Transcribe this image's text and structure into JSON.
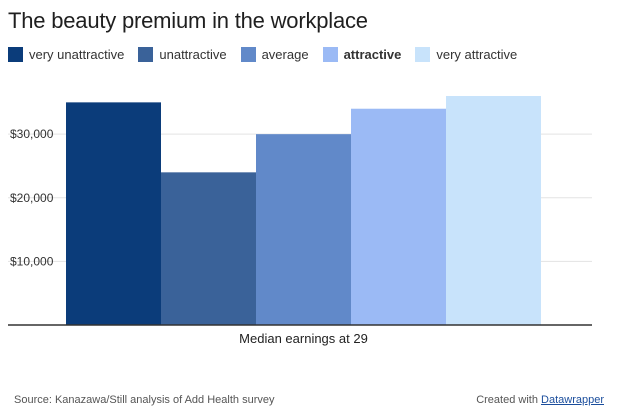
{
  "chart_data": {
    "type": "bar",
    "title": "The beauty premium in the workplace",
    "xlabel": "Median earnings at 29",
    "ylabel": "",
    "ylim": [
      0,
      36000
    ],
    "yticks": [
      10000,
      20000,
      30000
    ],
    "ytick_labels": [
      "$10,000",
      "$20,000",
      "$30,000"
    ],
    "grid": true,
    "legend_position": "top-left",
    "categories": [
      "Median earnings at 29"
    ],
    "series": [
      {
        "name": "very unattractive",
        "values": [
          35000
        ],
        "color": "#0b3c7a",
        "bold": false
      },
      {
        "name": "unattractive",
        "values": [
          24000
        ],
        "color": "#3a6299",
        "bold": false
      },
      {
        "name": "average",
        "values": [
          30000
        ],
        "color": "#6189c9",
        "bold": false
      },
      {
        "name": "attractive",
        "values": [
          34000
        ],
        "color": "#9bbaf5",
        "bold": true
      },
      {
        "name": "very attractive",
        "values": [
          36000
        ],
        "color": "#c8e3fb",
        "bold": false
      }
    ]
  },
  "footer": {
    "source": "Source: Kanazawa/Still analysis of Add Health survey",
    "credit_prefix": "Created with ",
    "credit_link": "Datawrapper"
  },
  "colors": {
    "axis": "#333333",
    "grid": "#e3e3e3",
    "tick_text": "#333333"
  }
}
